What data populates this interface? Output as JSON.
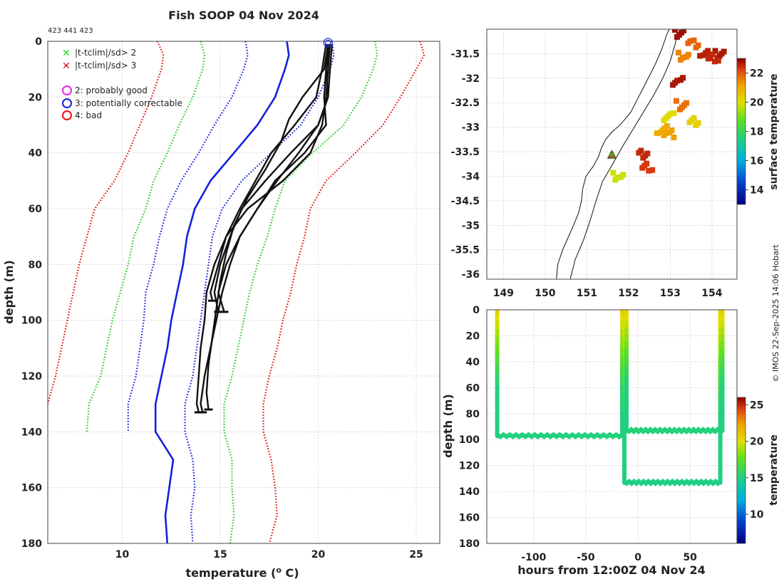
{
  "chart_data": [
    {
      "type": "line",
      "title": "Fish SOOP 04 Nov 2024",
      "subtitle": "423 441 423",
      "xlabel": "temperature (",
      "xlabel_sup": "o",
      "xlabel_tail": " C)",
      "ylabel": "depth (m)",
      "xlim": [
        6.2,
        26.2
      ],
      "ylim": [
        180,
        0
      ],
      "xticks": [
        10,
        15,
        20,
        25
      ],
      "yticks": [
        0,
        20,
        40,
        60,
        80,
        100,
        120,
        140,
        160,
        180
      ],
      "legend": [
        {
          "label": "|t-tclim|/sd> 2",
          "marker": "x",
          "color": "#22dd22"
        },
        {
          "label": "|t-tclim|/sd> 3",
          "marker": "x",
          "color": "#dd1111"
        },
        {
          "label": "2: probably good",
          "marker": "o",
          "color": "#ee22ee"
        },
        {
          "label": "3: potentially correctable",
          "marker": "o",
          "color": "#1122dd"
        },
        {
          "label": "4: bad",
          "marker": "o",
          "color": "#ee1111"
        }
      ],
      "climatology": {
        "depth_short": [
          0,
          5,
          10,
          20,
          30,
          40,
          50,
          60,
          70,
          80,
          90,
          100,
          110,
          120,
          130,
          140
        ],
        "depth_long": [
          0,
          5,
          10,
          20,
          30,
          40,
          50,
          60,
          70,
          80,
          90,
          100,
          110,
          120,
          130,
          140,
          150,
          160,
          170,
          180
        ],
        "series": [
          {
            "name": "clim-3sd-low",
            "color": "#dd1111",
            "style": "dotted",
            "short": true,
            "values": [
              11.8,
              12.1,
              12.0,
              11.5,
              10.9,
              10.3,
              9.6,
              8.6,
              8.2,
              7.8,
              7.5,
              7.2,
              6.9,
              6.6,
              6.2,
              6.0
            ]
          },
          {
            "name": "clim-2sd-low",
            "color": "#22cc22",
            "style": "dotted",
            "short": true,
            "values": [
              14.0,
              14.2,
              14.1,
              13.6,
              12.9,
              12.3,
              11.6,
              11.2,
              10.6,
              10.3,
              9.9,
              9.5,
              9.2,
              8.9,
              8.3,
              8.2
            ]
          },
          {
            "name": "clim-1sd-low",
            "color": "#1122dd",
            "style": "dotted",
            "short": true,
            "values": [
              16.3,
              16.4,
              16.2,
              15.6,
              14.7,
              13.9,
              13.0,
              12.3,
              11.9,
              11.6,
              11.2,
              11.1,
              10.9,
              10.7,
              10.3,
              10.3
            ]
          },
          {
            "name": "clim-mean",
            "color": "#1122dd",
            "style": "solid",
            "short": false,
            "values": [
              18.4,
              18.5,
              18.3,
              17.8,
              16.9,
              15.7,
              14.5,
              13.7,
              13.3,
              13.1,
              12.8,
              12.5,
              12.3,
              12.0,
              11.7,
              11.7,
              12.6,
              12.4,
              12.2,
              12.3
            ]
          },
          {
            "name": "clim-1sd-high",
            "color": "#1122dd",
            "style": "dotted",
            "short": false,
            "values": [
              20.7,
              20.8,
              20.6,
              20.0,
              19.1,
              17.6,
              16.1,
              15.1,
              14.6,
              14.4,
              14.2,
              14.0,
              13.8,
              13.6,
              13.2,
              13.2,
              13.6,
              13.7,
              13.5,
              13.6
            ]
          },
          {
            "name": "clim-2sd-high",
            "color": "#22cc22",
            "style": "dotted",
            "short": false,
            "values": [
              22.9,
              23.0,
              22.8,
              22.2,
              21.3,
              19.7,
              18.3,
              17.8,
              17.4,
              16.9,
              16.5,
              16.2,
              15.9,
              15.6,
              15.2,
              15.2,
              15.6,
              15.6,
              15.7,
              15.5
            ]
          },
          {
            "name": "clim-3sd-high",
            "color": "#dd1111",
            "style": "dotted",
            "short": false,
            "values": [
              25.2,
              25.4,
              25.0,
              24.2,
              23.3,
              21.9,
              20.4,
              19.6,
              19.3,
              18.9,
              18.6,
              18.2,
              17.9,
              17.5,
              17.2,
              17.2,
              17.6,
              17.8,
              17.9,
              17.5
            ]
          }
        ]
      },
      "profiles": [
        {
          "name": "profile-1",
          "depth": [
            1,
            10,
            20,
            30,
            40,
            50,
            60,
            70,
            80,
            90,
            93
          ],
          "values": [
            20.6,
            20.5,
            20.4,
            20.2,
            19.6,
            18.2,
            16.4,
            15.3,
            14.9,
            14.5,
            14.6
          ]
        },
        {
          "name": "profile-2",
          "depth": [
            1,
            10,
            20,
            30,
            40,
            50,
            60,
            70,
            80,
            90,
            97
          ],
          "values": [
            20.7,
            20.6,
            20.5,
            20.0,
            18.6,
            17.3,
            16.1,
            15.5,
            15.0,
            14.7,
            14.9
          ]
        },
        {
          "name": "profile-3",
          "depth": [
            1,
            10,
            20,
            28,
            36,
            46,
            56,
            66,
            76,
            86,
            96,
            106,
            116,
            126,
            132
          ],
          "values": [
            20.5,
            20.3,
            19.2,
            18.5,
            18.1,
            17.3,
            16.4,
            15.7,
            15.3,
            15.0,
            14.8,
            14.6,
            14.4,
            14.3,
            14.4
          ]
        },
        {
          "name": "profile-4",
          "depth": [
            1,
            10,
            20,
            30,
            40,
            50,
            60,
            70,
            80,
            90,
            100,
            110,
            120,
            130,
            133
          ],
          "values": [
            20.6,
            20.4,
            20.5,
            20.0,
            19.0,
            17.9,
            16.9,
            16.0,
            15.5,
            15.1,
            14.8,
            14.5,
            14.2,
            14.0,
            14.1
          ]
        },
        {
          "name": "profile-5",
          "depth": [
            1,
            10,
            20,
            30,
            40,
            50,
            60,
            70,
            80,
            90,
            97
          ],
          "values": [
            20.5,
            20.4,
            20.3,
            20.4,
            19.3,
            17.8,
            16.9,
            16.0,
            15.3,
            14.9,
            15.2
          ]
        },
        {
          "name": "profile-6",
          "depth": [
            1,
            10,
            20,
            30,
            40,
            50,
            60,
            70,
            80,
            90,
            100,
            110,
            120,
            130,
            133
          ],
          "values": [
            20.4,
            20.2,
            19.9,
            18.8,
            17.6,
            16.8,
            16.0,
            15.3,
            14.7,
            14.3,
            14.2,
            14.0,
            13.9,
            13.8,
            13.9
          ]
        }
      ],
      "qc_marker": {
        "temperature": 20.5,
        "depth": 0.5,
        "flag": "3: potentially correctable"
      }
    },
    {
      "type": "map",
      "xlim": [
        148.6,
        154.6
      ],
      "ylim": [
        -36.1,
        -31.0
      ],
      "xticks": [
        149,
        150,
        151,
        152,
        153,
        154
      ],
      "yticks": [
        -31.5,
        -32,
        -32.5,
        -33,
        -33.5,
        -34,
        -34.5,
        -35,
        -35.5,
        -36
      ],
      "ytick_labels": [
        "-31.5",
        "-32",
        "-32.5",
        "-33",
        "-33.5",
        "-34",
        "-34.5",
        "-35",
        "-35.5",
        "-36"
      ],
      "colorbar": {
        "label": "surface temperature",
        "range": [
          13,
          23
        ],
        "ticks": [
          14,
          16,
          18,
          20,
          22
        ]
      },
      "profile_location": {
        "lon": 151.6,
        "lat": -33.56
      },
      "coastline": [
        [
          150.27,
          -36.1
        ],
        [
          150.3,
          -35.8
        ],
        [
          150.42,
          -35.5
        ],
        [
          150.55,
          -35.25
        ],
        [
          150.68,
          -35.0
        ],
        [
          150.8,
          -34.75
        ],
        [
          150.87,
          -34.5
        ],
        [
          150.9,
          -34.25
        ],
        [
          150.98,
          -34.0
        ],
        [
          151.15,
          -33.8
        ],
        [
          151.28,
          -33.6
        ],
        [
          151.35,
          -33.42
        ],
        [
          151.45,
          -33.25
        ],
        [
          151.6,
          -33.1
        ],
        [
          151.8,
          -32.95
        ],
        [
          152.05,
          -32.7
        ],
        [
          152.2,
          -32.45
        ],
        [
          152.35,
          -32.2
        ],
        [
          152.5,
          -31.95
        ],
        [
          152.65,
          -31.7
        ],
        [
          152.8,
          -31.4
        ],
        [
          152.92,
          -31.1
        ],
        [
          153.0,
          -30.95
        ]
      ],
      "shelf_contour": [
        [
          150.6,
          -36.1
        ],
        [
          150.72,
          -35.7
        ],
        [
          150.92,
          -35.3
        ],
        [
          151.08,
          -34.9
        ],
        [
          151.22,
          -34.5
        ],
        [
          151.38,
          -34.1
        ],
        [
          151.62,
          -33.75
        ],
        [
          151.85,
          -33.4
        ],
        [
          152.1,
          -33.05
        ],
        [
          152.35,
          -32.7
        ],
        [
          152.6,
          -32.35
        ],
        [
          152.82,
          -32.0
        ],
        [
          153.0,
          -31.65
        ],
        [
          153.12,
          -31.3
        ],
        [
          153.18,
          -31.0
        ]
      ],
      "sst_patches": [
        {
          "lon": 153.25,
          "lat": -31.1,
          "temp": 22.8
        },
        {
          "lon": 153.3,
          "lat": -31.55,
          "temp": 21.5
        },
        {
          "lon": 153.55,
          "lat": -31.3,
          "temp": 21.8
        },
        {
          "lon": 153.85,
          "lat": -31.5,
          "temp": 22.6
        },
        {
          "lon": 154.2,
          "lat": -31.5,
          "temp": 22.7
        },
        {
          "lon": 154.05,
          "lat": -31.6,
          "temp": 22.5
        },
        {
          "lon": 152.95,
          "lat": -33.15,
          "temp": 21.2
        },
        {
          "lon": 152.8,
          "lat": -33.05,
          "temp": 21.0
        },
        {
          "lon": 152.35,
          "lat": -33.55,
          "temp": 22.5
        },
        {
          "lon": 152.45,
          "lat": -33.8,
          "temp": 22.3
        },
        {
          "lon": 153.2,
          "lat": -32.05,
          "temp": 22.7
        },
        {
          "lon": 153.25,
          "lat": -32.55,
          "temp": 21.7
        },
        {
          "lon": 153.55,
          "lat": -32.9,
          "temp": 20.3
        },
        {
          "lon": 152.95,
          "lat": -32.8,
          "temp": 20.1
        },
        {
          "lon": 151.75,
          "lat": -34.0,
          "temp": 19.8
        }
      ]
    },
    {
      "type": "scatter",
      "xlabel": "hours from 12:00Z 04 Nov 24",
      "ylabel": "depth (m)",
      "xlim": [
        -145,
        95
      ],
      "ylim": [
        180,
        0
      ],
      "xticks": [
        -100,
        -50,
        0,
        50
      ],
      "yticks": [
        0,
        20,
        40,
        60,
        80,
        100,
        120,
        140,
        160,
        180
      ],
      "colorbar": {
        "label": "temperature",
        "range": [
          6,
          26
        ],
        "ticks": [
          10,
          15,
          20,
          25
        ]
      },
      "casts": [
        {
          "name": "cast-1",
          "hour": -135,
          "max_depth": 97,
          "surface_temp": 20.6
        },
        {
          "name": "cast-2",
          "hour": -15,
          "max_depth": 97,
          "surface_temp": 20.5
        },
        {
          "name": "cast-3",
          "hour": -13,
          "max_depth": 133,
          "surface_temp": 20.6
        },
        {
          "name": "cast-4",
          "hour": -11,
          "max_depth": 93,
          "surface_temp": 20.4
        },
        {
          "name": "cast-5",
          "hour": 79,
          "max_depth": 133,
          "surface_temp": 20.5
        },
        {
          "name": "cast-6",
          "hour": 81,
          "max_depth": 93,
          "surface_temp": 20.6
        }
      ],
      "tows": [
        {
          "name": "tow-1",
          "from_hour": -135,
          "to_hour": -15,
          "depth": 97,
          "temp": 15.1
        },
        {
          "name": "tow-2",
          "from_hour": -13,
          "to_hour": 79,
          "depth": 133,
          "temp": 14.8
        },
        {
          "name": "tow-3",
          "from_hour": -11,
          "to_hour": 81,
          "depth": 93,
          "temp": 15.2
        }
      ]
    }
  ],
  "credit": "© IMOS 22-Sep-2025 14:06 Hobart"
}
